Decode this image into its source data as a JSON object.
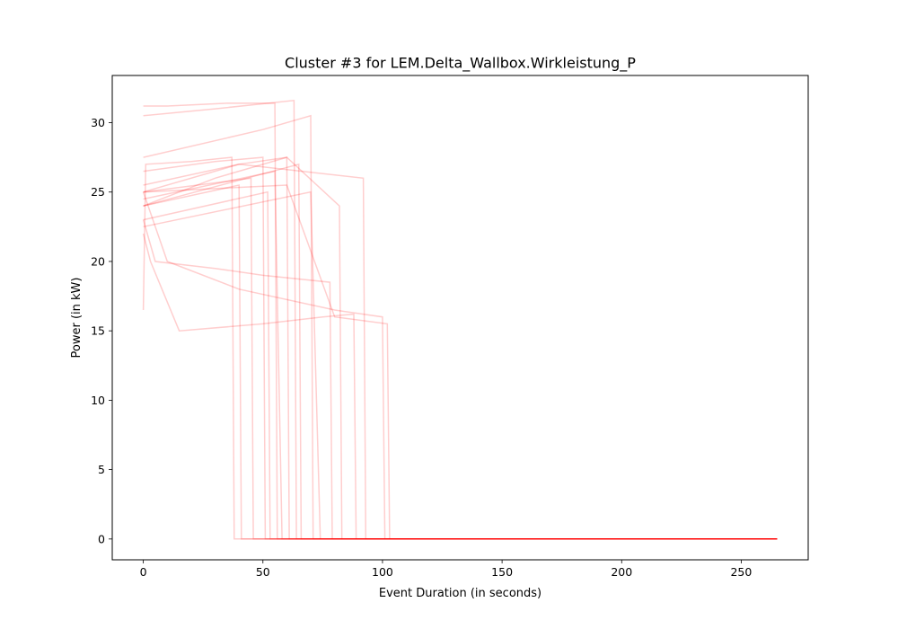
{
  "chart_data": {
    "type": "line",
    "title": "Cluster #3 for LEM.Delta_Wallbox.Wirkleistung_P",
    "xlabel": "Event Duration (in seconds)",
    "ylabel": "Power (in kW)",
    "xlim": [
      -13,
      278
    ],
    "ylim": [
      -1.5,
      33.4
    ],
    "xticks": [
      0,
      50,
      100,
      150,
      200,
      250
    ],
    "yticks": [
      0,
      5,
      10,
      15,
      20,
      25,
      30
    ],
    "grid": false,
    "legend": "none",
    "line_color": "#ff0000",
    "line_alpha": 0.12,
    "line_count_approx": 100,
    "common_end_x": 265,
    "final_value": 0,
    "representative_series": [
      {
        "x": [
          0,
          1,
          20,
          37,
          38,
          265
        ],
        "y": [
          16.5,
          27.0,
          27.2,
          27.5,
          0,
          0
        ]
      },
      {
        "x": [
          0,
          40,
          41,
          265
        ],
        "y": [
          24.0,
          25.5,
          0,
          0
        ]
      },
      {
        "x": [
          0,
          45,
          46,
          265
        ],
        "y": [
          25.0,
          26.0,
          0,
          0
        ]
      },
      {
        "x": [
          0,
          30,
          50,
          51,
          265
        ],
        "y": [
          26.5,
          27.2,
          27.5,
          0,
          0
        ]
      },
      {
        "x": [
          0,
          52,
          53,
          265
        ],
        "y": [
          23.0,
          25.0,
          0,
          0
        ]
      },
      {
        "x": [
          0,
          10,
          35,
          55,
          56,
          265
        ],
        "y": [
          31.2,
          31.2,
          31.4,
          31.4,
          0,
          0
        ]
      },
      {
        "x": [
          0,
          55,
          58,
          265
        ],
        "y": [
          24.5,
          26.5,
          0,
          0
        ]
      },
      {
        "x": [
          0,
          40,
          60,
          61,
          265
        ],
        "y": [
          25.0,
          27.0,
          27.5,
          0,
          0
        ]
      },
      {
        "x": [
          0,
          30,
          63,
          64,
          265
        ],
        "y": [
          30.5,
          31.0,
          31.6,
          0,
          0
        ]
      },
      {
        "x": [
          0,
          65,
          66,
          265
        ],
        "y": [
          24.0,
          27.0,
          0,
          0
        ]
      },
      {
        "x": [
          0,
          50,
          70,
          71,
          265
        ],
        "y": [
          27.5,
          29.5,
          30.5,
          0,
          0
        ]
      },
      {
        "x": [
          0,
          70,
          74,
          265
        ],
        "y": [
          22.5,
          25.0,
          0,
          0
        ]
      },
      {
        "x": [
          0,
          5,
          30,
          50,
          78,
          79,
          265
        ],
        "y": [
          23.0,
          20.0,
          19.5,
          19.0,
          18.5,
          0,
          0
        ]
      },
      {
        "x": [
          0,
          30,
          60,
          82,
          83,
          265
        ],
        "y": [
          24.0,
          26.0,
          27.5,
          24.0,
          0,
          0
        ]
      },
      {
        "x": [
          0,
          3,
          15,
          50,
          75,
          88,
          89,
          265
        ],
        "y": [
          22.0,
          20.0,
          15.0,
          15.5,
          16.0,
          16.2,
          0,
          0
        ]
      },
      {
        "x": [
          0,
          40,
          92,
          93,
          265
        ],
        "y": [
          25.5,
          27.0,
          26.0,
          0,
          0
        ]
      },
      {
        "x": [
          0,
          10,
          40,
          80,
          100,
          101,
          265
        ],
        "y": [
          25.0,
          20.0,
          18.0,
          16.5,
          16.0,
          0,
          0
        ]
      },
      {
        "x": [
          0,
          60,
          80,
          102,
          103,
          265
        ],
        "y": [
          25.0,
          25.5,
          16.0,
          15.5,
          0,
          0
        ]
      }
    ]
  }
}
